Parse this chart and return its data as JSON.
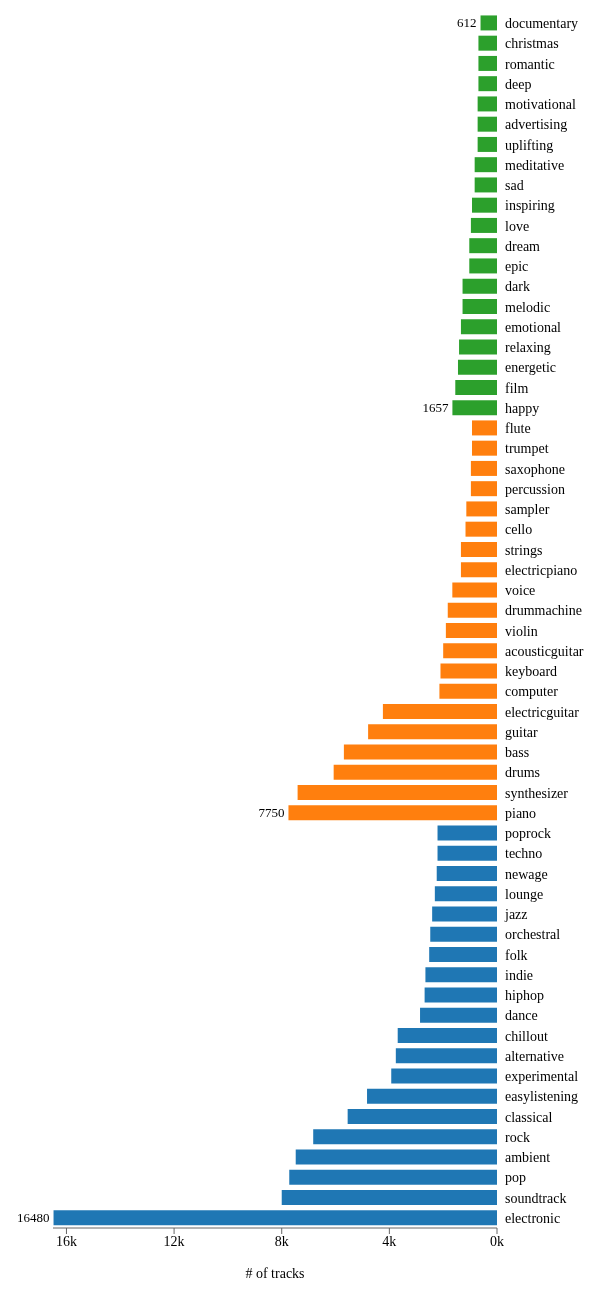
{
  "chart_data": {
    "type": "bar",
    "orientation": "horizontal",
    "xlabel": "# of tracks",
    "categories": [
      "documentary",
      "christmas",
      "romantic",
      "deep",
      "motivational",
      "advertising",
      "uplifting",
      "meditative",
      "sad",
      "inspiring",
      "love",
      "dream",
      "epic",
      "dark",
      "melodic",
      "emotional",
      "relaxing",
      "energetic",
      "film",
      "happy",
      "flute",
      "trumpet",
      "saxophone",
      "percussion",
      "sampler",
      "cello",
      "strings",
      "electricpiano",
      "voice",
      "drummachine",
      "violin",
      "acousticguitar",
      "keyboard",
      "computer",
      "electricguitar",
      "guitar",
      "bass",
      "drums",
      "synthesizer",
      "piano",
      "poprock",
      "techno",
      "newage",
      "lounge",
      "jazz",
      "orchestral",
      "folk",
      "indie",
      "hiphop",
      "dance",
      "chillout",
      "alternative",
      "experimental",
      "easylistening",
      "classical",
      "rock",
      "ambient",
      "pop",
      "soundtrack",
      "electronic"
    ],
    "values": [
      612,
      690,
      690,
      690,
      720,
      720,
      720,
      830,
      830,
      930,
      970,
      1030,
      1030,
      1280,
      1280,
      1340,
      1410,
      1450,
      1550,
      1657,
      930,
      930,
      970,
      970,
      1140,
      1170,
      1340,
      1340,
      1660,
      1830,
      1900,
      2000,
      2100,
      2140,
      4240,
      4790,
      5690,
      6070,
      7410,
      7750,
      2210,
      2210,
      2240,
      2310,
      2410,
      2480,
      2520,
      2660,
      2690,
      2860,
      3690,
      3760,
      3930,
      4830,
      5550,
      6830,
      7480,
      7720,
      8000,
      16480
    ],
    "colors": [
      "#2ca02c",
      "#2ca02c",
      "#2ca02c",
      "#2ca02c",
      "#2ca02c",
      "#2ca02c",
      "#2ca02c",
      "#2ca02c",
      "#2ca02c",
      "#2ca02c",
      "#2ca02c",
      "#2ca02c",
      "#2ca02c",
      "#2ca02c",
      "#2ca02c",
      "#2ca02c",
      "#2ca02c",
      "#2ca02c",
      "#2ca02c",
      "#2ca02c",
      "#ff7f0e",
      "#ff7f0e",
      "#ff7f0e",
      "#ff7f0e",
      "#ff7f0e",
      "#ff7f0e",
      "#ff7f0e",
      "#ff7f0e",
      "#ff7f0e",
      "#ff7f0e",
      "#ff7f0e",
      "#ff7f0e",
      "#ff7f0e",
      "#ff7f0e",
      "#ff7f0e",
      "#ff7f0e",
      "#ff7f0e",
      "#ff7f0e",
      "#ff7f0e",
      "#ff7f0e",
      "#1f77b4",
      "#1f77b4",
      "#1f77b4",
      "#1f77b4",
      "#1f77b4",
      "#1f77b4",
      "#1f77b4",
      "#1f77b4",
      "#1f77b4",
      "#1f77b4",
      "#1f77b4",
      "#1f77b4",
      "#1f77b4",
      "#1f77b4",
      "#1f77b4",
      "#1f77b4",
      "#1f77b4",
      "#1f77b4",
      "#1f77b4",
      "#1f77b4"
    ],
    "value_labels": [
      "612",
      null,
      null,
      null,
      null,
      null,
      null,
      null,
      null,
      null,
      null,
      null,
      null,
      null,
      null,
      null,
      null,
      null,
      null,
      "1657",
      null,
      null,
      null,
      null,
      null,
      null,
      null,
      null,
      null,
      null,
      null,
      null,
      null,
      null,
      null,
      null,
      null,
      null,
      null,
      "7750",
      null,
      null,
      null,
      null,
      null,
      null,
      null,
      null,
      null,
      null,
      null,
      null,
      null,
      null,
      null,
      null,
      null,
      null,
      null,
      "16480"
    ],
    "xlim": [
      16500,
      0
    ],
    "xticks": [
      {
        "value": 16000,
        "label": "16k"
      },
      {
        "value": 12000,
        "label": "12k"
      },
      {
        "value": 8000,
        "label": "8k"
      },
      {
        "value": 4000,
        "label": "4k"
      },
      {
        "value": 0,
        "label": "0k"
      }
    ],
    "grid": false
  }
}
